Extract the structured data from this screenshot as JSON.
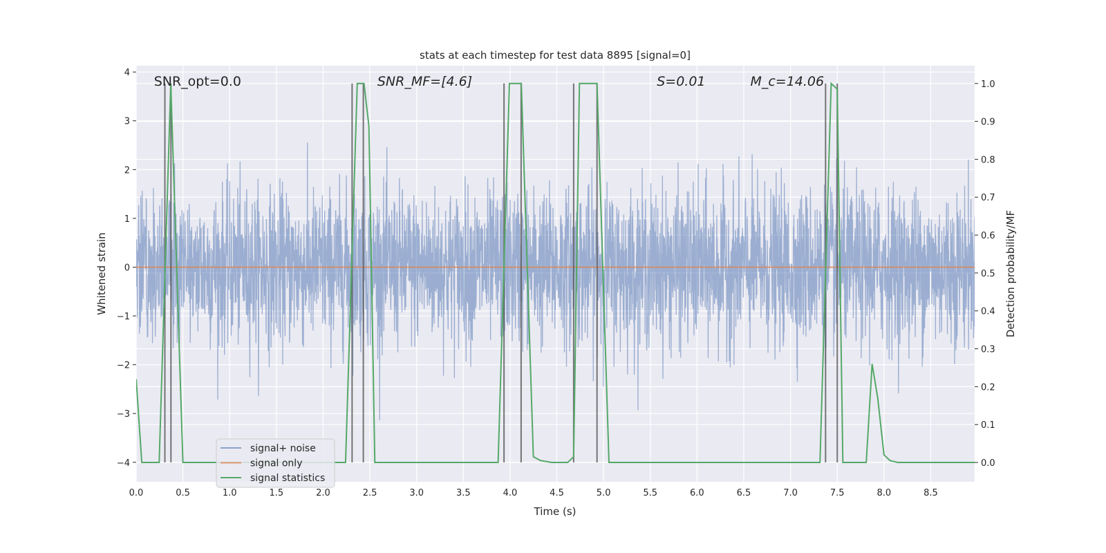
{
  "chart_data": {
    "type": "line",
    "title": "stats at each timestep for test data 8895 [signal=0]",
    "xlabel": "Time (s)",
    "ylabel_left": "Whitened strain",
    "ylabel_right": "Detection probability/MF",
    "xlim": [
      0,
      8.97
    ],
    "ylim_left": [
      -4.4,
      4.13
    ],
    "ylim_right": [
      -0.051,
      1.047
    ],
    "x_ticks": [
      "0.0",
      "0.5",
      "1.0",
      "1.5",
      "2.0",
      "2.5",
      "3.0",
      "3.5",
      "4.0",
      "4.5",
      "5.0",
      "5.5",
      "6.0",
      "6.5",
      "7.0",
      "7.5",
      "8.0",
      "8.5"
    ],
    "x_tick_values": [
      0,
      0.5,
      1,
      1.5,
      2,
      2.5,
      3,
      3.5,
      4,
      4.5,
      5,
      5.5,
      6,
      6.5,
      7,
      7.5,
      8,
      8.5
    ],
    "y_left_ticks": [
      "−4",
      "−3",
      "−2",
      "−1",
      "0",
      "1",
      "2",
      "3",
      "4"
    ],
    "y_left_tick_values": [
      -4,
      -3,
      -2,
      -1,
      0,
      1,
      2,
      3,
      4
    ],
    "y_right_ticks": [
      "0.0",
      "0.1",
      "0.2",
      "0.3",
      "0.4",
      "0.5",
      "0.6",
      "0.7",
      "0.8",
      "0.9",
      "1.0"
    ],
    "y_right_tick_values": [
      0,
      0.1,
      0.2,
      0.3,
      0.4,
      0.5,
      0.6,
      0.7,
      0.8,
      0.9,
      1.0
    ],
    "grid": true,
    "legend": {
      "placement": "lower-left-center",
      "entries": [
        "signal+ noise",
        "signal only",
        "signal statistics"
      ]
    },
    "series": [
      {
        "name": "signal+ noise",
        "axis": "left",
        "color": "#4c72b0",
        "alpha": 0.5,
        "generated": {
          "std": 0.78,
          "samples": 3600,
          "seed": 8895
        }
      },
      {
        "name": "signal only",
        "axis": "left",
        "color": "#dd8452",
        "x": [
          0,
          8.97
        ],
        "y": [
          0,
          0
        ]
      },
      {
        "name": "signal statistics",
        "axis": "right",
        "color": "#55a868",
        "x": [
          0.0,
          0.06,
          0.246,
          0.37,
          0.5,
          2.24,
          2.365,
          2.437,
          2.49,
          2.553,
          3.872,
          3.993,
          4.12,
          4.249,
          4.326,
          4.447,
          4.616,
          4.68,
          4.742,
          4.93,
          5.058,
          7.315,
          7.435,
          7.5,
          7.56,
          7.81,
          7.873,
          7.933,
          8.0,
          8.065,
          8.15,
          8.97
        ],
        "y": [
          0.22,
          0.0,
          0.0,
          1.0,
          0.0,
          0.0,
          1.0,
          1.0,
          0.887,
          0.0,
          0.0,
          1.0,
          1.0,
          0.015,
          0.005,
          0.0,
          0.0,
          0.015,
          1.0,
          1.0,
          0.0,
          0.0,
          1.0,
          0.985,
          0.0,
          0.0,
          0.26,
          0.17,
          0.02,
          0.005,
          0.0,
          0.0
        ]
      }
    ],
    "vertical_markers": {
      "color": "#555555",
      "x": [
        0.307,
        0.372,
        2.31,
        2.43,
        3.935,
        4.118,
        4.68,
        4.93,
        7.375,
        7.5
      ],
      "y_range_right": [
        0,
        1
      ]
    },
    "annotations": [
      {
        "id": "snr-opt",
        "t": 0.19,
        "text": "SNR_opt=0.0",
        "main": "SNR_opt=0.0"
      },
      {
        "id": "snr-mf",
        "t": 2.58,
        "text": "SNR_MF=[4.6]",
        "main": "SNR",
        "sub": "M",
        "tail_italic": "F",
        "tail": "=[4.6]"
      },
      {
        "id": "s",
        "t": 5.57,
        "text": "S=0.01",
        "main": "S",
        "tail": "=0.01"
      },
      {
        "id": "mc",
        "t": 6.57,
        "text": "M_c=14.06",
        "main": "M",
        "sub": "c",
        "tail": "=14.06"
      }
    ]
  },
  "colors": {
    "axes_bg": "#eaeaf2",
    "grid": "#ffffff",
    "text": "#262626"
  }
}
